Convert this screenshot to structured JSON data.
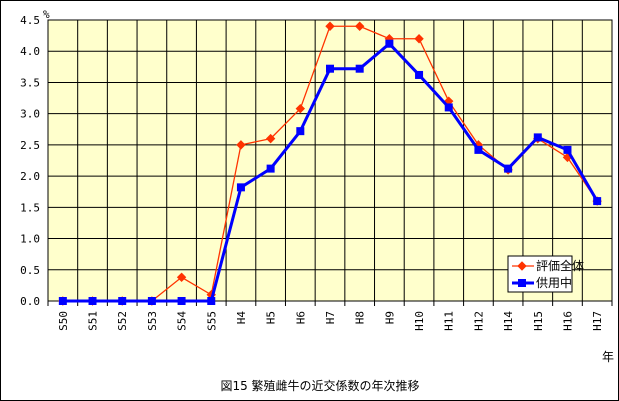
{
  "chart_data": {
    "type": "line",
    "title": "図15  繁殖雌牛の近交係数の年次推移",
    "ylabel": "%",
    "xlabel": "年",
    "ylim": [
      0,
      4.5
    ],
    "yticks": [
      "0.0",
      "0.5",
      "1.0",
      "1.5",
      "2.0",
      "2.5",
      "3.0",
      "3.5",
      "4.0",
      "4.5"
    ],
    "grid": true,
    "legend_position": "bottom-right",
    "plot_background": "#ffffcc",
    "categories": [
      "S50",
      "S51",
      "S52",
      "S53",
      "S54",
      "S55",
      "H4",
      "H5",
      "H6",
      "H7",
      "H8",
      "H9",
      "H10",
      "H11",
      "H12",
      "H14",
      "H15",
      "H16",
      "H17"
    ],
    "series": [
      {
        "name": "評価全体",
        "color": "#ff3300",
        "marker": "diamond",
        "values": [
          0.0,
          0.0,
          0.0,
          0.0,
          0.38,
          0.1,
          2.5,
          2.6,
          3.08,
          4.4,
          4.4,
          4.2,
          4.2,
          3.2,
          2.5,
          2.1,
          2.6,
          2.3,
          1.6
        ]
      },
      {
        "name": "供用中",
        "color": "#0000ff",
        "marker": "square",
        "values": [
          0.0,
          0.0,
          0.0,
          0.0,
          0.0,
          0.0,
          1.82,
          2.12,
          2.72,
          3.72,
          3.72,
          4.12,
          3.62,
          3.1,
          2.42,
          2.12,
          2.62,
          2.42,
          1.6
        ]
      }
    ]
  }
}
